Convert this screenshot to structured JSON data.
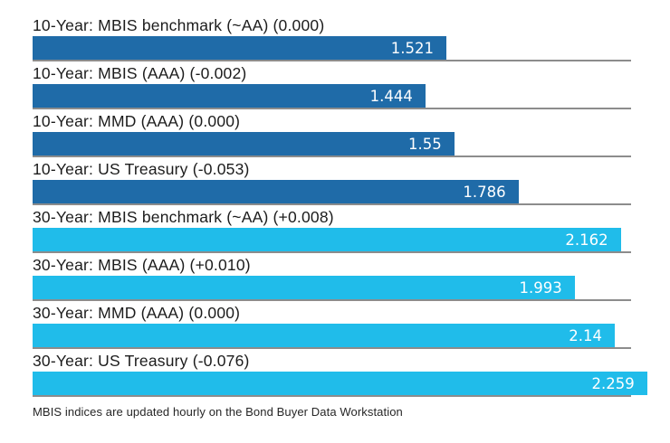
{
  "chart_data": {
    "type": "bar",
    "orientation": "horizontal",
    "title": "",
    "xlabel": "",
    "ylabel": "",
    "xlim": [
      0,
      2.2
    ],
    "grid": false,
    "legend": "none",
    "categories": [
      "10-Year: MBIS benchmark (~AA) (0.000)",
      "10-Year: MBIS (AAA) (-0.002)",
      "10-Year: MMD (AAA) (0.000)",
      "10-Year: US Treasury (-0.053)",
      "30-Year: MBIS benchmark (~AA) (+0.008)",
      "30-Year: MBIS (AAA) (+0.010)",
      "30-Year: MMD (AAA) (0.000)",
      "30-Year: US Treasury (-0.076)"
    ],
    "values": [
      1.521,
      1.444,
      1.55,
      1.786,
      2.162,
      1.993,
      2.14,
      2.259
    ],
    "value_labels": [
      "1.521",
      "1.444",
      "1.55",
      "1.786",
      "2.162",
      "1.993",
      "2.14",
      "2.259"
    ],
    "groups": [
      "10-Year",
      "10-Year",
      "10-Year",
      "10-Year",
      "30-Year",
      "30-Year",
      "30-Year",
      "30-Year"
    ],
    "group_colors": {
      "10-Year": "#1f6ba8",
      "30-Year": "#20bcea"
    },
    "footnote": "MBIS indices are updated hourly on the Bond Buyer Data Workstation"
  },
  "colors": {
    "bar_10_year": "#1f6ba8",
    "bar_30_year": "#20bcea",
    "baseline_rule": "#8c8c8c",
    "label_text": "#1c1c1c",
    "value_text": "#ffffff",
    "background": "#ffffff"
  }
}
